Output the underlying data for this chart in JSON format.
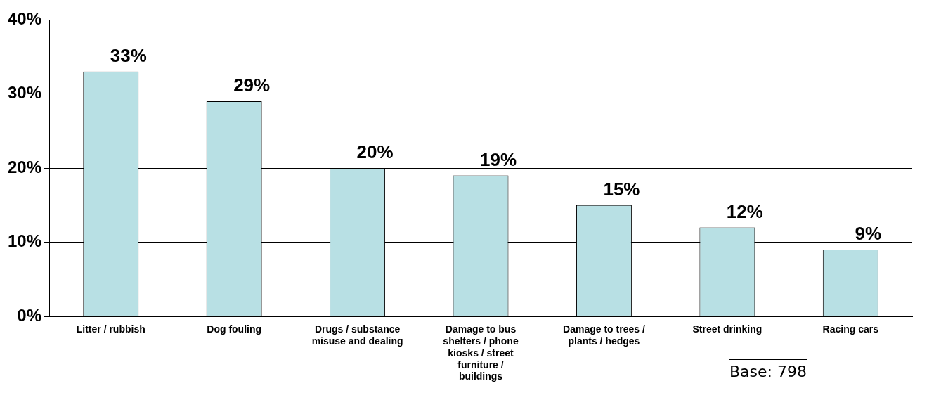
{
  "chart_data": {
    "type": "bar",
    "categories": [
      "Litter / rubbish",
      "Dog fouling",
      "Drugs / substance misuse and dealing",
      "Damage to bus shelters / phone kiosks / street furniture / buildings",
      "Damage to trees / plants / hedges",
      "Street drinking",
      "Racing cars"
    ],
    "values": [
      33,
      29,
      20,
      19,
      15,
      12,
      9
    ],
    "color": "#b8e0e4",
    "data_labels": true,
    "value_labels": [
      "33%",
      "29%",
      "20%",
      "19%",
      "15%",
      "12%",
      "9%"
    ],
    "ylim": [
      0,
      40
    ],
    "yticks": [
      {
        "value": 0,
        "label": "0%"
      },
      {
        "value": 10,
        "label": "10%"
      },
      {
        "value": 20,
        "label": "20%"
      },
      {
        "value": 30,
        "label": "30%"
      },
      {
        "value": 40,
        "label": "40%"
      }
    ],
    "grid": "y",
    "legend": false,
    "annotations": [
      "Base: 798"
    ]
  }
}
